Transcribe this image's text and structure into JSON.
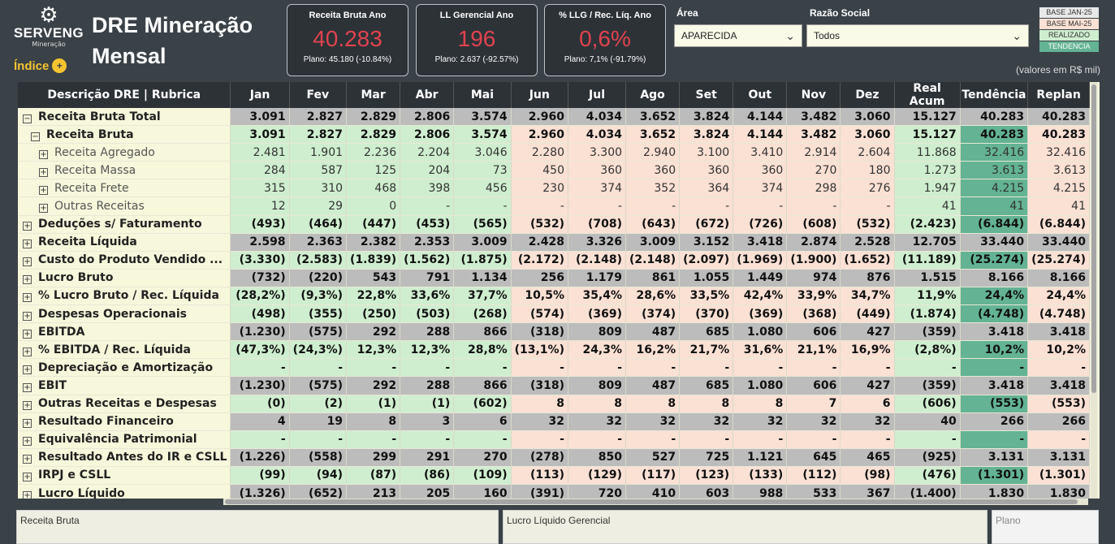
{
  "header": {
    "brand": "SERVENG",
    "brand_sub": "Mineração",
    "indice_label": "Índice",
    "title_line1": "DRE Mineração",
    "title_line2": "Mensal",
    "units_note": "(valores em R$ mil)"
  },
  "kpis": [
    {
      "title": "Receita Bruta Ano",
      "value": "40.283",
      "plan": "Plano: 45.180 (-10.84%)"
    },
    {
      "title": "LL Gerencial Ano",
      "value": "196",
      "plan": "Plano: 2.637 (-92.57%)"
    },
    {
      "title": "% LLG / Rec. Líq. Ano",
      "value": "0,6%",
      "plan": "Plano: 7,1% (-91.79%)"
    }
  ],
  "filters": {
    "area_label": "Área",
    "area_value": "APARECIDA",
    "razao_label": "Razão Social",
    "razao_value": "Todos"
  },
  "legend": [
    {
      "label": "BASE JAN-25",
      "bg": "#e8e8e8"
    },
    {
      "label": "BASE MAI-25",
      "bg": "#fbe0d4"
    },
    {
      "label": "REALIZADO",
      "bg": "#cfeecf"
    },
    {
      "label": "TENDENCIA",
      "bg": "#63b394"
    }
  ],
  "table": {
    "headers": [
      "Descrição DRE | Rubrica",
      "Jan",
      "Fev",
      "Mar",
      "Abr",
      "Mai",
      "Jun",
      "Jul",
      "Ago",
      "Set",
      "Out",
      "Nov",
      "Dez",
      "Real Acum",
      "Tendência",
      "Replan"
    ],
    "rows": [
      {
        "label": "Receita Bruta Total",
        "icon": "⊟",
        "indent": 0,
        "style": "bold",
        "band": "gray",
        "values": [
          "3.091",
          "2.827",
          "2.829",
          "2.806",
          "3.574",
          "2.960",
          "4.034",
          "3.652",
          "3.824",
          "4.144",
          "3.482",
          "3.060",
          "15.127",
          "40.283",
          "40.283"
        ]
      },
      {
        "label": "Receita Bruta",
        "icon": "⊟",
        "indent": 1,
        "style": "bold",
        "band": "split",
        "values": [
          "3.091",
          "2.827",
          "2.829",
          "2.806",
          "3.574",
          "2.960",
          "4.034",
          "3.652",
          "3.824",
          "4.144",
          "3.482",
          "3.060",
          "15.127",
          "40.283",
          "40.283"
        ]
      },
      {
        "label": "Receita Agregado",
        "icon": "⊞",
        "indent": 2,
        "style": "light",
        "band": "split",
        "values": [
          "2.481",
          "1.901",
          "2.236",
          "2.204",
          "3.046",
          "2.280",
          "3.300",
          "2.940",
          "3.100",
          "3.410",
          "2.914",
          "2.604",
          "11.868",
          "32.416",
          "32.416"
        ]
      },
      {
        "label": "Receita Massa",
        "icon": "⊞",
        "indent": 2,
        "style": "light",
        "band": "split",
        "values": [
          "284",
          "587",
          "125",
          "204",
          "73",
          "450",
          "360",
          "360",
          "360",
          "360",
          "270",
          "180",
          "1.273",
          "3.613",
          "3.613"
        ]
      },
      {
        "label": "Receita Frete",
        "icon": "⊞",
        "indent": 2,
        "style": "light",
        "band": "split",
        "values": [
          "315",
          "310",
          "468",
          "398",
          "456",
          "230",
          "374",
          "352",
          "364",
          "374",
          "298",
          "276",
          "1.947",
          "4.215",
          "4.215"
        ]
      },
      {
        "label": "Outras Receitas",
        "icon": "⊞",
        "indent": 2,
        "style": "light",
        "band": "split",
        "values": [
          "12",
          "29",
          "0",
          "-",
          "-",
          "-",
          "-",
          "-",
          "-",
          "-",
          "-",
          "-",
          "41",
          "41",
          "41"
        ]
      },
      {
        "label": "Deduções s/ Faturamento",
        "icon": "⊞",
        "indent": 0,
        "style": "bold",
        "band": "split",
        "values": [
          "(493)",
          "(464)",
          "(447)",
          "(453)",
          "(565)",
          "(532)",
          "(708)",
          "(643)",
          "(672)",
          "(726)",
          "(608)",
          "(532)",
          "(2.423)",
          "(6.844)",
          "(6.844)"
        ]
      },
      {
        "label": "Receita Líquida",
        "icon": "⊞",
        "indent": 0,
        "style": "bold",
        "band": "gray",
        "values": [
          "2.598",
          "2.363",
          "2.382",
          "2.353",
          "3.009",
          "2.428",
          "3.326",
          "3.009",
          "3.152",
          "3.418",
          "2.874",
          "2.528",
          "12.705",
          "33.440",
          "33.440"
        ]
      },
      {
        "label": "Custo do Produto Vendido ...",
        "icon": "⊞",
        "indent": 0,
        "style": "bold",
        "band": "split",
        "values": [
          "(3.330)",
          "(2.583)",
          "(1.839)",
          "(1.562)",
          "(1.875)",
          "(2.172)",
          "(2.148)",
          "(2.148)",
          "(2.097)",
          "(1.969)",
          "(1.900)",
          "(1.652)",
          "(11.189)",
          "(25.274)",
          "(25.274)"
        ]
      },
      {
        "label": "Lucro Bruto",
        "icon": "⊞",
        "indent": 0,
        "style": "bold",
        "band": "gray",
        "values": [
          "(732)",
          "(220)",
          "543",
          "791",
          "1.134",
          "256",
          "1.179",
          "861",
          "1.055",
          "1.449",
          "974",
          "876",
          "1.515",
          "8.166",
          "8.166"
        ]
      },
      {
        "label": "% Lucro Bruto / Rec. Líquida",
        "icon": "⊞",
        "indent": 0,
        "style": "bold",
        "band": "split",
        "values": [
          "(28,2%)",
          "(9,3%)",
          "22,8%",
          "33,6%",
          "37,7%",
          "10,5%",
          "35,4%",
          "28,6%",
          "33,5%",
          "42,4%",
          "33,9%",
          "34,7%",
          "11,9%",
          "24,4%",
          "24,4%"
        ]
      },
      {
        "label": "Despesas Operacionais",
        "icon": "⊞",
        "indent": 0,
        "style": "bold",
        "band": "split",
        "values": [
          "(498)",
          "(355)",
          "(250)",
          "(503)",
          "(268)",
          "(574)",
          "(369)",
          "(374)",
          "(370)",
          "(369)",
          "(368)",
          "(449)",
          "(1.874)",
          "(4.748)",
          "(4.748)"
        ]
      },
      {
        "label": "EBITDA",
        "icon": "⊞",
        "indent": 0,
        "style": "bold",
        "band": "gray",
        "values": [
          "(1.230)",
          "(575)",
          "292",
          "288",
          "866",
          "(318)",
          "809",
          "487",
          "685",
          "1.080",
          "606",
          "427",
          "(359)",
          "3.418",
          "3.418"
        ]
      },
      {
        "label": "% EBITDA / Rec. Líquida",
        "icon": "⊞",
        "indent": 0,
        "style": "bold",
        "band": "split",
        "values": [
          "(47,3%)",
          "(24,3%)",
          "12,3%",
          "12,3%",
          "28,8%",
          "(13,1%)",
          "24,3%",
          "16,2%",
          "21,7%",
          "31,6%",
          "21,1%",
          "16,9%",
          "(2,8%)",
          "10,2%",
          "10,2%"
        ]
      },
      {
        "label": "Depreciação e Amortização",
        "icon": "⊞",
        "indent": 0,
        "style": "bold",
        "band": "split",
        "values": [
          "-",
          "-",
          "-",
          "-",
          "-",
          "-",
          "-",
          "-",
          "-",
          "-",
          "-",
          "-",
          "-",
          "-",
          "-"
        ]
      },
      {
        "label": "EBIT",
        "icon": "⊞",
        "indent": 0,
        "style": "bold",
        "band": "gray",
        "values": [
          "(1.230)",
          "(575)",
          "292",
          "288",
          "866",
          "(318)",
          "809",
          "487",
          "685",
          "1.080",
          "606",
          "427",
          "(359)",
          "3.418",
          "3.418"
        ]
      },
      {
        "label": "Outras Receitas e Despesas",
        "icon": "⊞",
        "indent": 0,
        "style": "bold",
        "band": "split",
        "values": [
          "(0)",
          "(2)",
          "(1)",
          "(1)",
          "(602)",
          "8",
          "8",
          "8",
          "8",
          "8",
          "7",
          "6",
          "(606)",
          "(553)",
          "(553)"
        ]
      },
      {
        "label": "Resultado Financeiro",
        "icon": "⊞",
        "indent": 0,
        "style": "bold",
        "band": "gray",
        "values": [
          "4",
          "19",
          "8",
          "3",
          "6",
          "32",
          "32",
          "32",
          "32",
          "32",
          "32",
          "32",
          "40",
          "266",
          "266"
        ]
      },
      {
        "label": "Equivalência Patrimonial",
        "icon": "⊞",
        "indent": 0,
        "style": "bold",
        "band": "split",
        "values": [
          "-",
          "-",
          "-",
          "-",
          "-",
          "-",
          "-",
          "-",
          "-",
          "-",
          "-",
          "-",
          "-",
          "-",
          "-"
        ]
      },
      {
        "label": "Resultado Antes do IR e CSLL",
        "icon": "⊞",
        "indent": 0,
        "style": "bold",
        "band": "gray",
        "values": [
          "(1.226)",
          "(558)",
          "299",
          "291",
          "270",
          "(278)",
          "850",
          "527",
          "725",
          "1.121",
          "645",
          "465",
          "(925)",
          "3.131",
          "3.131"
        ]
      },
      {
        "label": "IRPJ e CSLL",
        "icon": "⊞",
        "indent": 0,
        "style": "bold",
        "band": "split",
        "values": [
          "(99)",
          "(94)",
          "(87)",
          "(86)",
          "(109)",
          "(113)",
          "(129)",
          "(117)",
          "(123)",
          "(133)",
          "(112)",
          "(98)",
          "(476)",
          "(1.301)",
          "(1.301)"
        ]
      },
      {
        "label": "Lucro Líquido",
        "icon": "⊞",
        "indent": 0,
        "style": "bold",
        "band": "gray",
        "values": [
          "(1.326)",
          "(652)",
          "213",
          "205",
          "160",
          "(391)",
          "720",
          "410",
          "603",
          "988",
          "533",
          "367",
          "(1.400)",
          "1.830",
          "1.830"
        ]
      }
    ]
  },
  "panels": {
    "left": "Receita Bruta",
    "middle": "Lucro Líquido Gerencial",
    "right": "Plano"
  }
}
